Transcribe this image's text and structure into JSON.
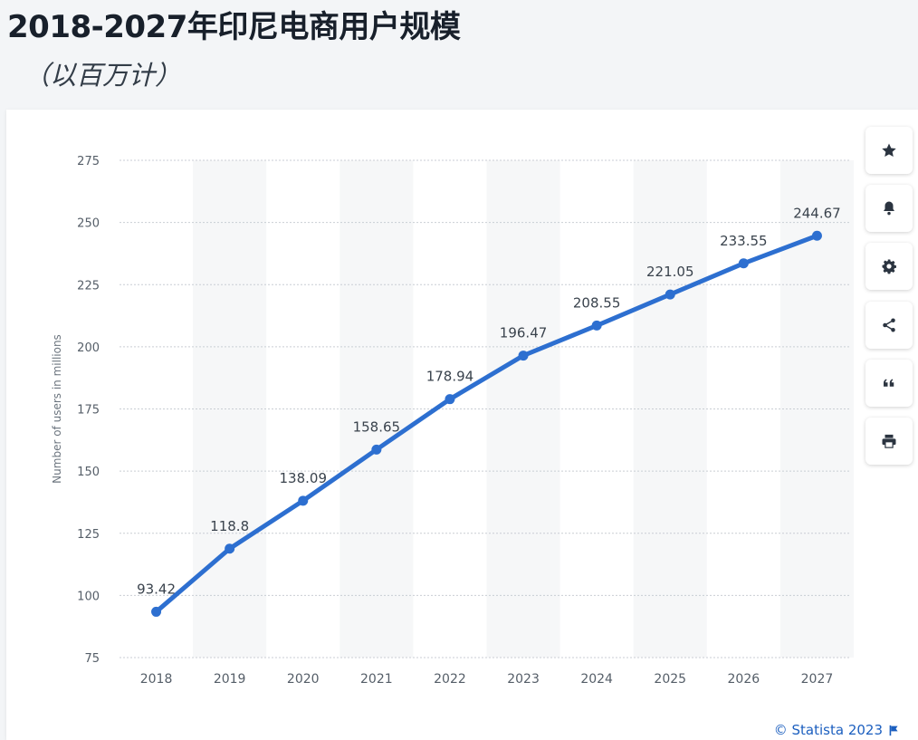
{
  "title": "2018-2027年印尼电商用户规模",
  "subtitle": "（以百万计）",
  "credit": "© Statista 2023",
  "toolbar": [
    {
      "name": "star-icon"
    },
    {
      "name": "bell-icon"
    },
    {
      "name": "gear-icon"
    },
    {
      "name": "share-icon"
    },
    {
      "name": "quote-icon"
    },
    {
      "name": "print-icon"
    }
  ],
  "colors": {
    "line": "#2d6fd0",
    "grid": "#c9ced4",
    "band": "#f6f7f8",
    "tick": "#555e68",
    "label": "#3a434d"
  },
  "chart_data": {
    "type": "line",
    "categories": [
      "2018",
      "2019",
      "2020",
      "2021",
      "2022",
      "2023",
      "2024",
      "2025",
      "2026",
      "2027"
    ],
    "series": [
      {
        "values": [
          93.42,
          118.8,
          138.09,
          158.65,
          178.94,
          196.47,
          208.55,
          221.05,
          233.55,
          244.67
        ]
      }
    ],
    "data_labels": [
      "93.42",
      "118.8",
      "138.09",
      "158.65",
      "178.94",
      "196.47",
      "208.55",
      "221.05",
      "233.55",
      "244.67"
    ],
    "ylabel": "Number of users in millions",
    "yticks": [
      75,
      100,
      125,
      150,
      175,
      200,
      225,
      250,
      275
    ],
    "ylim": [
      75,
      275
    ],
    "grid": true,
    "alternating_bands": true
  }
}
